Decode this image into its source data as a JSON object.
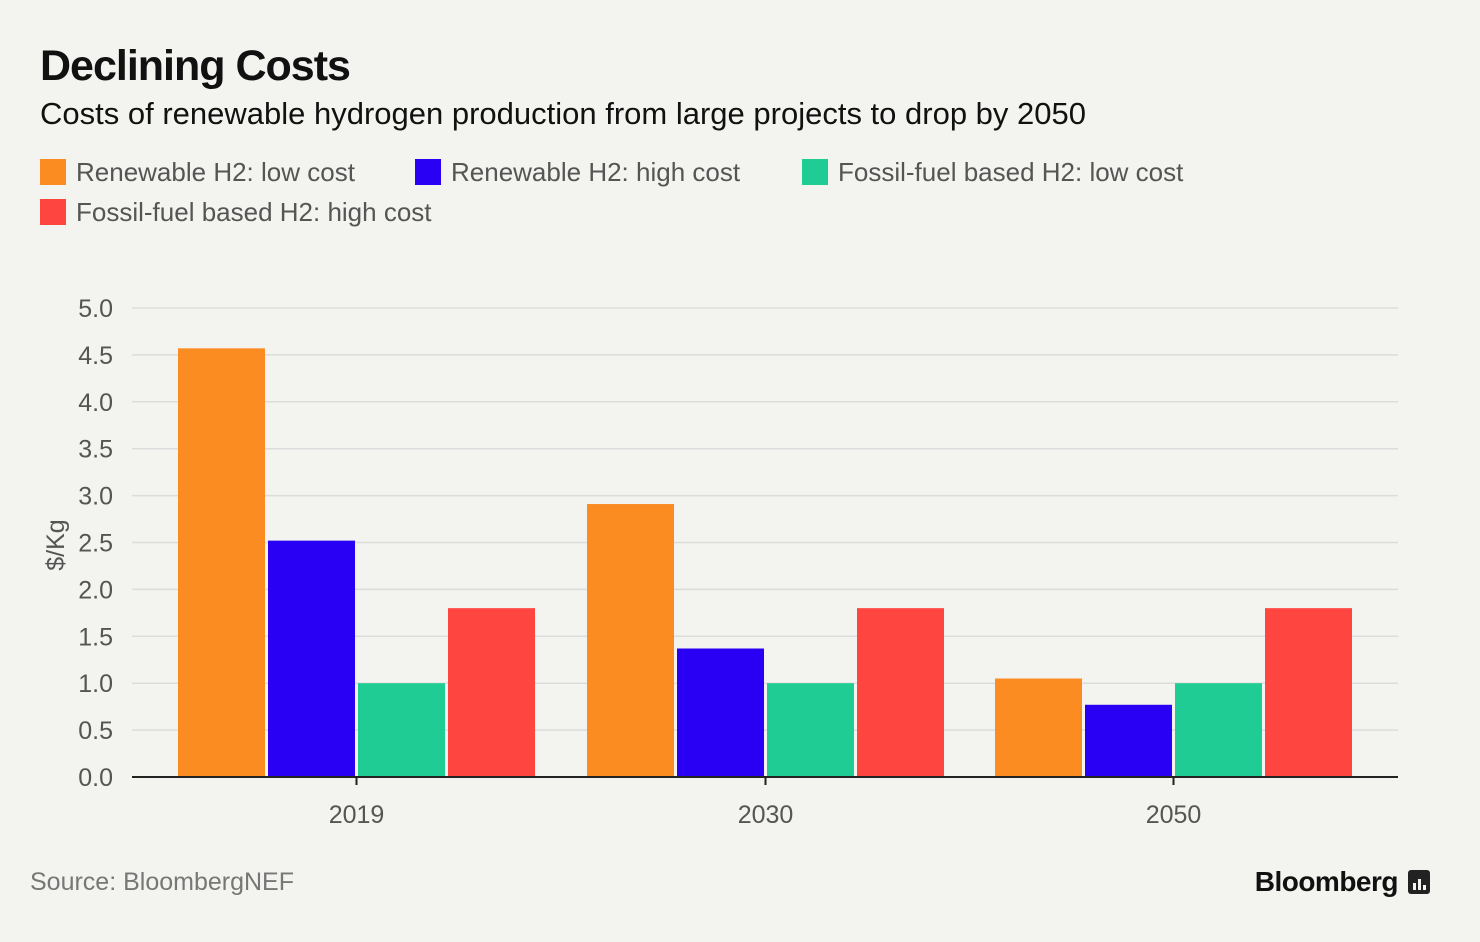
{
  "header": {
    "title": "Declining Costs",
    "subtitle": "Costs of renewable hydrogen production from large projects to drop by 2050"
  },
  "footer": {
    "source": "Source: BloombergNEF",
    "brand": "Bloomberg"
  },
  "chart_data": {
    "type": "bar",
    "title": "Declining Costs",
    "subtitle": "Costs of renewable hydrogen production from large projects to drop by 2050",
    "xlabel": "",
    "ylabel": "$/Kg",
    "ylim": [
      0,
      5
    ],
    "yticks": [
      "0.0",
      "0.5",
      "1.0",
      "1.5",
      "2.0",
      "2.5",
      "3.0",
      "3.5",
      "4.0",
      "4.5",
      "5.0"
    ],
    "categories": [
      "2019",
      "2030",
      "2050"
    ],
    "grid": true,
    "legend_position": "top",
    "series": [
      {
        "name": "Renewable H2: low cost",
        "color": "#fb8c22",
        "values": [
          4.57,
          2.91,
          1.05
        ]
      },
      {
        "name": "Renewable H2: high cost",
        "color": "#2a00f5",
        "values": [
          2.52,
          1.37,
          0.77
        ]
      },
      {
        "name": "Fossil-fuel based H2: low cost",
        "color": "#1fcc93",
        "values": [
          1.0,
          1.0,
          1.0
        ]
      },
      {
        "name": "Fossil-fuel based H2: high cost",
        "color": "#ff4540",
        "values": [
          1.8,
          1.8,
          1.8
        ]
      }
    ]
  }
}
